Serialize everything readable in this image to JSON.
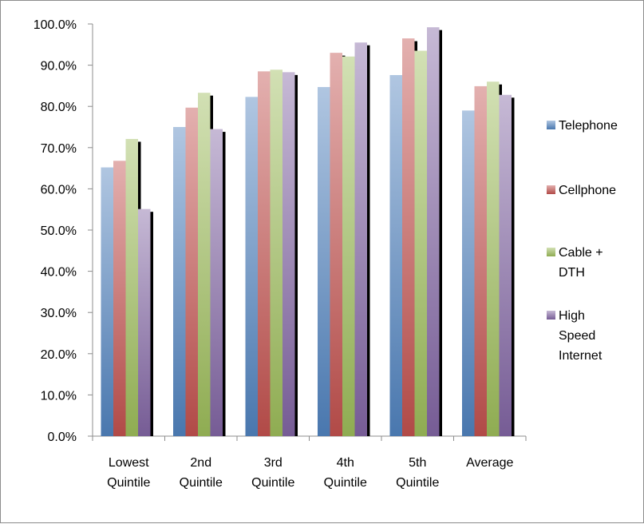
{
  "chart_data": {
    "type": "bar",
    "categories": [
      [
        "Lowest",
        "Quintile"
      ],
      [
        "2nd",
        "Quintile"
      ],
      [
        "3rd",
        "Quintile"
      ],
      [
        "4th",
        "Quintile"
      ],
      [
        "5th",
        "Quintile"
      ],
      [
        "Average"
      ]
    ],
    "series": [
      {
        "name": [
          "Telephone"
        ],
        "color": "#4f81bd",
        "values": [
          0.652,
          0.75,
          0.823,
          0.847,
          0.876,
          0.79
        ]
      },
      {
        "name": [
          "Cellphone"
        ],
        "color": "#c0504d",
        "values": [
          0.668,
          0.797,
          0.885,
          0.93,
          0.965,
          0.849
        ]
      },
      {
        "name": [
          "Cable +",
          "DTH"
        ],
        "color": "#9bbb59",
        "values": [
          0.721,
          0.833,
          0.889,
          0.921,
          0.935,
          0.86
        ]
      },
      {
        "name": [
          "High",
          "Speed",
          "Internet"
        ],
        "color": "#8064a2",
        "values": [
          0.551,
          0.745,
          0.883,
          0.955,
          0.992,
          0.828
        ]
      }
    ],
    "y_ticks": [
      "0.0%",
      "10.0%",
      "20.0%",
      "30.0%",
      "40.0%",
      "50.0%",
      "60.0%",
      "70.0%",
      "80.0%",
      "90.0%",
      "100.0%"
    ],
    "ylim": [
      0,
      1
    ],
    "title": "",
    "xlabel": "",
    "ylabel": "",
    "grid": false,
    "legend_position": "right"
  }
}
